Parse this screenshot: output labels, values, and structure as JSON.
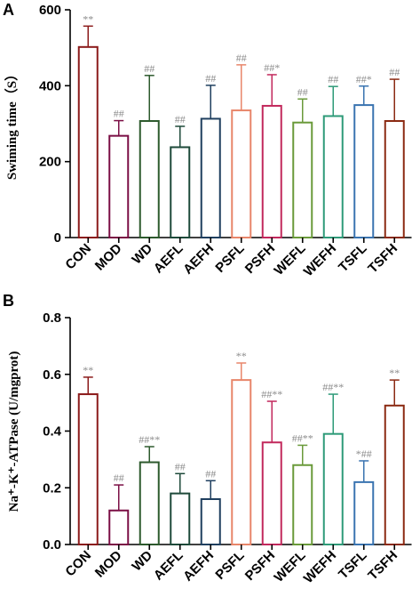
{
  "colors": {
    "CON": "#8B1A1A",
    "MOD": "#7B0F45",
    "WD": "#2D5A2D",
    "AEFL": "#1E4A3A",
    "AEFH": "#1F3F5F",
    "PSFL": "#E8866A",
    "PSFH": "#C2285C",
    "WEFL": "#6A9A3A",
    "WEFH": "#2E9A78",
    "TSFL": "#3A74B0",
    "TSFH": "#8B2A12"
  },
  "chart_data": [
    {
      "panel": "A",
      "type": "bar",
      "title": "",
      "xlabel": "",
      "ylabel": "Swiming time（S）",
      "ylim": [
        0,
        600
      ],
      "yticks": [
        "0",
        "200",
        "400",
        "600"
      ],
      "categories": [
        "CON",
        "MOD",
        "WD",
        "AEFL",
        "AEFH",
        "PSFL",
        "PSFH",
        "WEFL",
        "WEFH",
        "TSFL",
        "TSFH"
      ],
      "values": [
        502,
        268,
        307,
        238,
        313,
        335,
        347,
        303,
        320,
        349,
        307
      ],
      "errors": [
        55,
        40,
        120,
        55,
        88,
        120,
        82,
        62,
        78,
        50,
        110
      ],
      "annotations": [
        "**",
        "##",
        "##",
        "##",
        "##",
        "##",
        "##*",
        "##",
        "##",
        "##*",
        "##"
      ],
      "grid": false
    },
    {
      "panel": "B",
      "type": "bar",
      "title": "",
      "xlabel": "",
      "ylabel": "Na⁺-K⁺-ATPase (U/mgprot)",
      "ylim": [
        0,
        0.8
      ],
      "yticks": [
        "0.0",
        "0.2",
        "0.4",
        "0.6",
        "0.8"
      ],
      "categories": [
        "CON",
        "MOD",
        "WD",
        "AEFL",
        "AEFH",
        "PSFL",
        "PSFH",
        "WEFL",
        "WEFH",
        "TSFL",
        "TSFH"
      ],
      "values": [
        0.53,
        0.12,
        0.29,
        0.18,
        0.16,
        0.58,
        0.36,
        0.28,
        0.39,
        0.22,
        0.49
      ],
      "errors": [
        0.06,
        0.09,
        0.055,
        0.07,
        0.065,
        0.06,
        0.145,
        0.07,
        0.14,
        0.075,
        0.09
      ],
      "annotations": [
        "**",
        "##",
        "##**",
        "##",
        "##",
        "**",
        "##**",
        "##**",
        "##**",
        "*##",
        "**"
      ],
      "grid": false
    }
  ]
}
